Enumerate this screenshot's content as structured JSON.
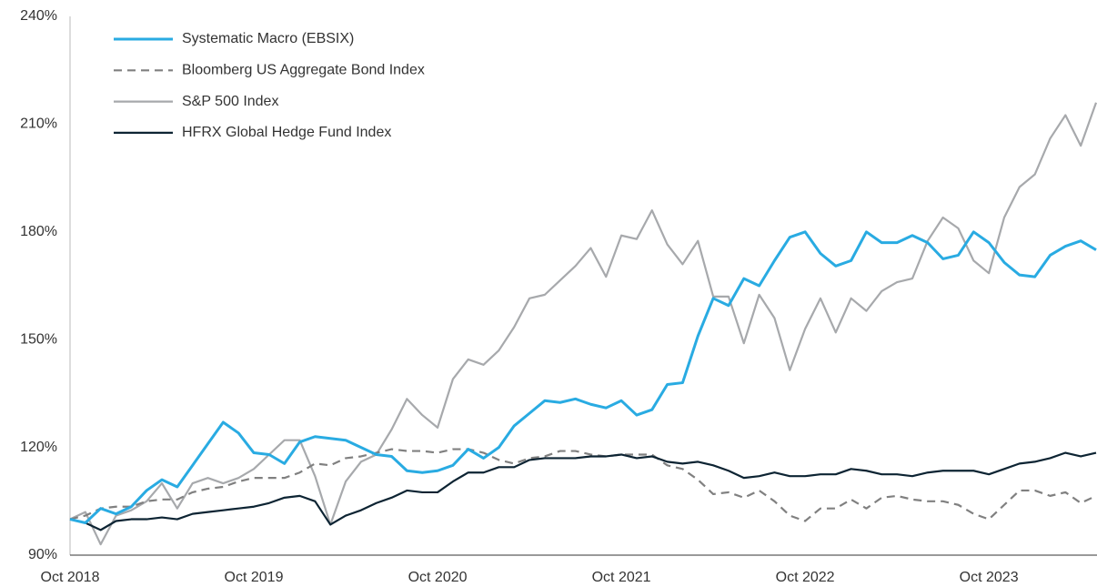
{
  "chart_data": {
    "type": "line",
    "categories": [
      "Oct 2018",
      null,
      null,
      null,
      null,
      null,
      null,
      null,
      null,
      null,
      null,
      null,
      "Oct 2019",
      null,
      null,
      null,
      null,
      null,
      null,
      null,
      null,
      null,
      null,
      null,
      "Oct 2020",
      null,
      null,
      null,
      null,
      null,
      null,
      null,
      null,
      null,
      null,
      null,
      "Oct 2021",
      null,
      null,
      null,
      null,
      null,
      null,
      null,
      null,
      null,
      null,
      null,
      "Oct 2022",
      null,
      null,
      null,
      null,
      null,
      null,
      null,
      null,
      null,
      null,
      null,
      "Oct 2023",
      null,
      null,
      null,
      null,
      null,
      null,
      null
    ],
    "series": [
      {
        "name": "Systematic Macro (EBSIX)",
        "color": "#29abe2",
        "linestyle": "solid",
        "values": [
          100,
          99,
          103,
          101.5,
          103.5,
          108,
          111,
          109,
          115,
          121,
          127,
          124,
          118.5,
          118,
          115.5,
          121.5,
          123,
          122.5,
          122,
          120,
          118,
          117.5,
          113.5,
          113,
          113.5,
          115,
          119.5,
          117,
          120,
          126,
          129.5,
          133,
          132.5,
          133.5,
          132,
          131,
          133,
          129,
          130.5,
          137.5,
          138,
          151,
          161.5,
          159.5,
          167,
          165,
          172,
          178.5,
          180,
          174,
          170.5,
          172,
          180,
          177,
          177,
          179,
          177,
          172.5,
          173.5,
          180,
          177,
          171.5,
          168,
          167.5,
          173.5,
          176,
          177.5,
          175
        ]
      },
      {
        "name": "Bloomberg US Aggregate Bond Index",
        "color": "#808080",
        "linestyle": "dashed",
        "values": [
          100,
          101,
          103,
          103.5,
          103.5,
          105,
          105.5,
          105.5,
          107.5,
          108.5,
          109,
          110.5,
          111.5,
          111.5,
          111.5,
          113,
          115.5,
          115,
          117,
          117.5,
          118.5,
          119.5,
          119,
          119,
          118.5,
          119.5,
          119.5,
          118.5,
          116.5,
          115.5,
          117,
          117.5,
          119,
          119,
          118,
          117.5,
          118,
          118,
          118,
          115,
          114,
          111,
          107,
          107.5,
          106,
          108,
          105,
          101,
          99.5,
          103,
          103,
          105.5,
          103,
          106,
          106.5,
          105.5,
          105,
          105,
          104,
          101.5,
          100,
          104,
          108,
          108,
          106.5,
          107.5,
          104.5,
          106.5
        ]
      },
      {
        "name": "S&P 500 Index",
        "color": "#a7a9ac",
        "linestyle": "solid",
        "values": [
          100,
          102,
          93,
          101,
          102.5,
          105,
          110,
          103,
          110,
          111.5,
          110,
          111.5,
          114,
          118,
          122,
          122,
          112,
          98.5,
          110.5,
          116,
          118,
          125,
          133.5,
          129,
          125.5,
          139,
          144.5,
          143,
          147,
          153.5,
          161.5,
          162.5,
          166.5,
          170.5,
          175.5,
          167.5,
          179,
          178,
          186,
          176.5,
          171,
          177.5,
          162,
          162,
          149,
          162.5,
          156,
          141.5,
          153,
          161.5,
          152,
          161.5,
          158,
          163.5,
          166,
          167,
          177.5,
          184,
          181,
          172,
          168.5,
          184,
          192.5,
          196,
          206,
          212.5,
          204,
          216
        ]
      },
      {
        "name": "HFRX Global Hedge Fund Index",
        "color": "#0d2433",
        "linestyle": "solid",
        "values": [
          100,
          99,
          97,
          99.5,
          100,
          100,
          100.5,
          100,
          101.5,
          102,
          102.5,
          103,
          103.5,
          104.5,
          106,
          106.5,
          105,
          98.5,
          101,
          102.5,
          104.5,
          106,
          108,
          107.5,
          107.5,
          110.5,
          113,
          113,
          114.5,
          114.5,
          116.5,
          117,
          117,
          117,
          117.5,
          117.5,
          118,
          117,
          117.5,
          116,
          115.5,
          116,
          115,
          113.5,
          111.5,
          112,
          113,
          112,
          112,
          112.5,
          112.5,
          114,
          113.5,
          112.5,
          112.5,
          112,
          113,
          113.5,
          113.5,
          113.5,
          112.5,
          114,
          115.5,
          116,
          117,
          118.5,
          117.5,
          118.5
        ]
      }
    ],
    "ylim": [
      90,
      240
    ],
    "yticks": [
      {
        "value": 90,
        "label": "90%"
      },
      {
        "value": 120,
        "label": "120%"
      },
      {
        "value": 150,
        "label": "150%"
      },
      {
        "value": 180,
        "label": "180%"
      },
      {
        "value": 210,
        "label": "210%"
      },
      {
        "value": 240,
        "label": "240%"
      }
    ],
    "grid": false,
    "legend": "upper left"
  }
}
